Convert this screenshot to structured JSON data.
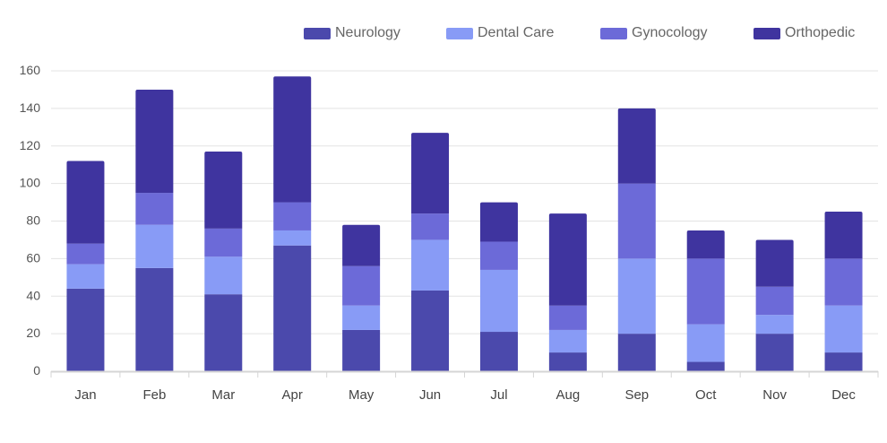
{
  "chart_data": {
    "type": "bar",
    "stacked": true,
    "categories": [
      "Jan",
      "Feb",
      "Mar",
      "Apr",
      "May",
      "Jun",
      "Jul",
      "Aug",
      "Sep",
      "Oct",
      "Nov",
      "Dec"
    ],
    "series": [
      {
        "name": "Neurology",
        "color": "#4b49ac",
        "values": [
          44,
          55,
          41,
          67,
          22,
          43,
          21,
          10,
          20,
          5,
          20,
          10
        ]
      },
      {
        "name": "Dental Care",
        "color": "#889bf6",
        "values": [
          13,
          23,
          20,
          8,
          13,
          27,
          33,
          12,
          40,
          20,
          10,
          25
        ]
      },
      {
        "name": "Gynocology",
        "color": "#6c6ad8",
        "values": [
          11,
          17,
          15,
          15,
          21,
          14,
          15,
          13,
          40,
          35,
          15,
          25
        ]
      },
      {
        "name": "Orthopedic",
        "color": "#3f349f",
        "values": [
          44,
          55,
          41,
          67,
          22,
          43,
          21,
          49,
          40,
          15,
          25,
          25
        ]
      }
    ],
    "ylim": [
      0,
      160
    ],
    "yticks": [
      0,
      20,
      40,
      60,
      80,
      100,
      120,
      140,
      160
    ],
    "grid": true,
    "legend_position": "top-right",
    "xlabel": "",
    "ylabel": ""
  }
}
